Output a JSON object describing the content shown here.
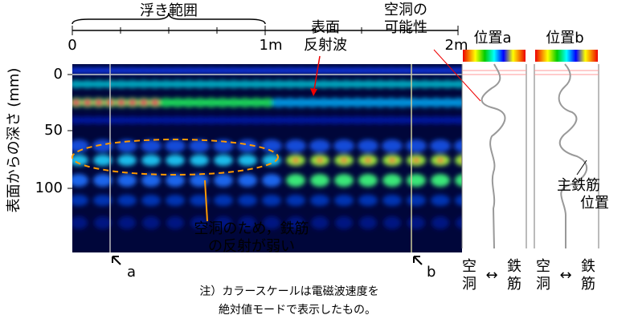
{
  "top_axis": {
    "bracket_label": "浮き範囲",
    "ticks": [
      "0",
      "1m",
      "2m"
    ]
  },
  "depth_axis": {
    "label": "表面からの深さ (mm)",
    "ticks": [
      "0",
      "50",
      "100"
    ]
  },
  "annotations": {
    "surface_reflection": [
      "表面",
      "反射波"
    ],
    "void_possibility": [
      "空洞の",
      "可能性"
    ],
    "weak_reflection": [
      "空洞のため，鉄筋",
      "の反射が弱い"
    ],
    "marker_a": "a",
    "marker_b": "b",
    "main_rebar": [
      "主鉄筋",
      "位置"
    ]
  },
  "panels": [
    {
      "title": "位置a",
      "left": [
        "空",
        "洞"
      ],
      "arrow": "↔",
      "right": [
        "鉄",
        "筋"
      ]
    },
    {
      "title": "位置b",
      "left": [
        "空",
        "洞"
      ],
      "arrow": "↔",
      "right": [
        "鉄",
        "筋"
      ]
    }
  ],
  "note": [
    "注）カラースケールは電磁波速度を",
    "絶対値モードで表示したもの。"
  ]
}
